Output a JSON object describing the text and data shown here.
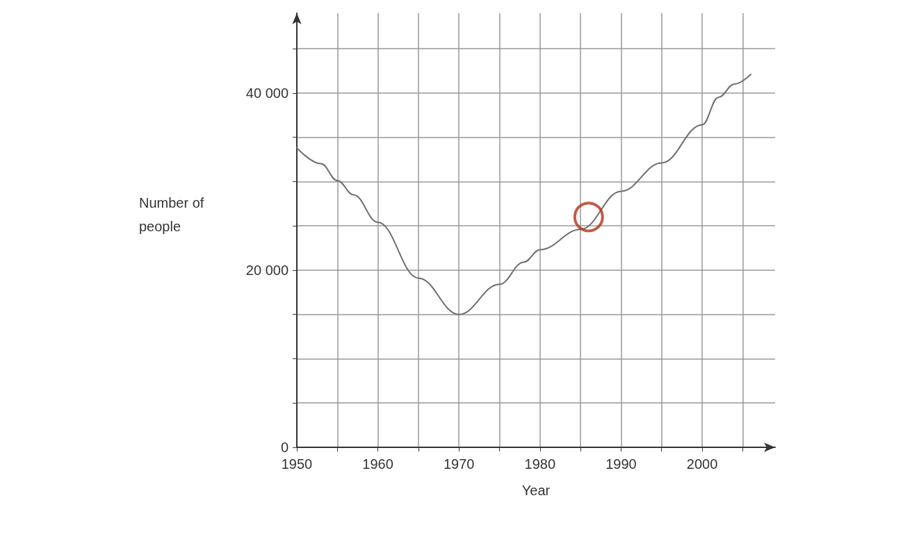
{
  "chart_data": {
    "type": "line",
    "xlabel": "Year",
    "ylabel": "Number of people",
    "x": [
      1950,
      1953,
      1955,
      1957,
      1960,
      1965,
      1970,
      1975,
      1978,
      1980,
      1985,
      1990,
      1995,
      2000,
      2002,
      2004,
      2006
    ],
    "series": [
      {
        "color": "#6e6e6e",
        "values": [
          33800,
          32000,
          30100,
          28500,
          25400,
          19100,
          15000,
          18400,
          20900,
          22300,
          24600,
          28900,
          32100,
          36400,
          39500,
          41000,
          42100
        ]
      },
      {
        "type": "scatter",
        "marker": "circle",
        "color": "#b0341a",
        "x": [
          1986
        ],
        "values": [
          26000
        ]
      }
    ],
    "xlim": [
      1950,
      2009
    ],
    "ylim": [
      0,
      49000
    ],
    "xticks": [
      1950,
      {
        "value": 1955,
        "label": null
      },
      1960,
      {
        "value": 1965,
        "label": null
      },
      1970,
      {
        "value": 1975,
        "label": null
      },
      1980,
      {
        "value": 1985,
        "label": null
      },
      1990,
      {
        "value": 1995,
        "label": null
      },
      2000,
      {
        "value": 2005,
        "label": null
      }
    ],
    "yticks": [
      0,
      {
        "value": 5000,
        "label": null
      },
      {
        "value": 10000,
        "label": null
      },
      {
        "value": 15000,
        "label": null
      },
      {
        "value": 20000,
        "label": "20 000"
      },
      {
        "value": 25000,
        "label": null
      },
      {
        "value": 30000,
        "label": null
      },
      {
        "value": 35000,
        "label": null
      },
      {
        "value": 40000,
        "label": "40 000"
      },
      {
        "value": 45000,
        "label": null
      }
    ],
    "grid": true,
    "marker": "none",
    "line_style": "solid"
  }
}
